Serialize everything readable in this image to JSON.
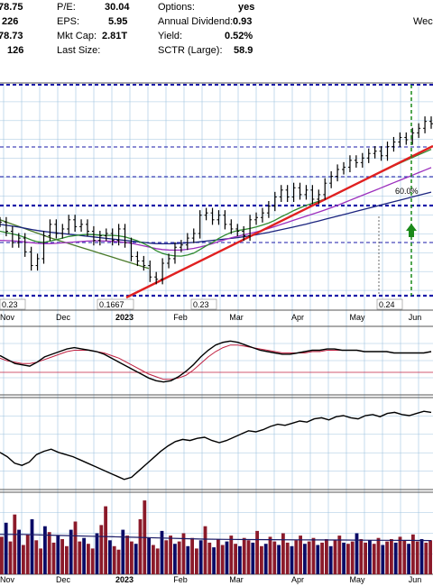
{
  "header": {
    "stats": [
      {
        "label": "",
        "value": "78.75"
      },
      {
        "label": "",
        "value": "226"
      },
      {
        "label": "",
        "value": "78.73"
      },
      {
        "label": "",
        "value": "126"
      }
    ],
    "fundamentals": [
      {
        "label": "P/E:",
        "value": "30.04"
      },
      {
        "label": "EPS:",
        "value": "5.95"
      },
      {
        "label": "Mkt Cap:",
        "value": "2.81T"
      },
      {
        "label": "Last Size:",
        "value": ""
      }
    ],
    "other": [
      {
        "label": "Options:",
        "value": "yes"
      },
      {
        "label": "Annual Dividend:",
        "value": "0.93"
      },
      {
        "label": "Yield:",
        "value": "0.52%"
      },
      {
        "label": "SCTR (Large):",
        "value": "58.9"
      }
    ],
    "date_fragment": "Wec"
  },
  "colors": {
    "background": "#ffffff",
    "grid": "#9fc3df",
    "price_bar": "#000000",
    "sma_short": "#2f8a2f",
    "sma_mid": "#9b2fbd",
    "sma_long": "#1a237e",
    "sma_200": "#4a7a2a",
    "trendline": "#e02020",
    "level_line": "#1a1aa8",
    "projection": "#1a8a1a",
    "rsi_line": "#000000",
    "rsi_signal": "#c02040",
    "volume_up": "#0a0a66",
    "volume_down": "#8b1a2a",
    "panel_border": "#555555"
  },
  "chart_data": {
    "type": "line",
    "title": "",
    "x_axis": {
      "month_labels": [
        "Nov",
        "Dec",
        "2023",
        "Feb",
        "Mar",
        "Apr",
        "May",
        "Jun"
      ],
      "bold_label": "2023"
    },
    "price_panel": {
      "close": [
        151,
        147,
        142,
        144,
        138,
        132,
        135,
        145,
        150,
        146,
        148,
        152,
        149,
        150,
        147,
        143,
        145,
        146,
        143,
        148,
        142,
        136,
        134,
        132,
        127,
        126,
        133,
        135,
        140,
        141,
        144,
        146,
        154,
        155,
        152,
        154,
        150,
        148,
        147,
        145,
        152,
        153,
        155,
        158,
        162,
        165,
        162,
        166,
        163,
        165,
        161,
        163,
        168,
        171,
        174,
        175,
        178,
        177,
        179,
        181,
        182,
        180,
        184,
        186,
        188,
        187,
        190,
        192,
        195,
        194
      ],
      "sma_short": [
        147,
        146.4,
        145.8,
        145.2,
        144.3,
        143.2,
        142.4,
        142.1,
        142.7,
        143.3,
        144,
        144.7,
        145.1,
        145.4,
        145.6,
        145.5,
        145.3,
        145.2,
        145.2,
        145,
        144.5,
        143.7,
        142.8,
        141.6,
        140.2,
        138.5,
        137.3,
        136.6,
        136.2,
        136.1,
        136.6,
        137.4,
        139,
        140.6,
        142.1,
        143.9,
        145.3,
        146.5,
        147.3,
        147.7,
        148.2,
        148.9,
        149.7,
        150.6,
        151.8,
        153.3,
        154.6,
        156,
        157.2,
        158.3,
        159.2,
        160.1,
        161.1,
        162.2,
        163.4,
        164.8,
        166.2,
        167.6,
        169,
        170.5,
        171.8,
        172.9,
        174.2,
        175.5,
        176.8,
        178,
        179.2,
        180.4,
        181.6,
        182.8
      ],
      "sma_mid": [
        143,
        142.9,
        142.8,
        142.6,
        142.3,
        142,
        141.7,
        141.6,
        141.6,
        141.7,
        141.9,
        142.1,
        142.3,
        142.5,
        142.7,
        142.8,
        142.8,
        142.7,
        142.6,
        142.4,
        142.1,
        141.7,
        141.2,
        140.6,
        140,
        139.4,
        139,
        138.8,
        138.7,
        138.8,
        139.1,
        139.5,
        140.1,
        140.8,
        141.6,
        142.5,
        143.3,
        144.1,
        144.8,
        145.4,
        146,
        146.7,
        147.4,
        148.2,
        149.1,
        150,
        150.9,
        151.8,
        152.7,
        153.6,
        154.5,
        155.4,
        156.3,
        157.3,
        158.3,
        159.4,
        160.5,
        161.6,
        162.7,
        163.8,
        164.9,
        166,
        167.1,
        168.2,
        169.3,
        170.4,
        171.5,
        172.6,
        173.7,
        174.8
      ],
      "sma_long": [
        150,
        149.6,
        149.2,
        148.8,
        148.3,
        147.8,
        147.3,
        146.9,
        146.6,
        146.3,
        146,
        145.7,
        145.4,
        145.1,
        144.8,
        144.5,
        144.2,
        143.9,
        143.6,
        143.3,
        143,
        142.7,
        142.4,
        142.1,
        141.8,
        141.6,
        141.5,
        141.5,
        141.6,
        141.7,
        141.9,
        142.1,
        142.4,
        142.7,
        143,
        143.3,
        143.6,
        143.9,
        144.2,
        144.6,
        145,
        145.5,
        146,
        146.5,
        147.1,
        147.7,
        148.3,
        148.9,
        149.5,
        150.1,
        150.8,
        151.5,
        152.2,
        152.9,
        153.6,
        154.3,
        155,
        155.7,
        156.4,
        157.1,
        157.8,
        158.5,
        159.2,
        159.9,
        160.6,
        161.3,
        162,
        162.7,
        163.4,
        164.1
      ],
      "sma_200": [
        152,
        151.2,
        150.4,
        149.6,
        148.8,
        148,
        147.2,
        146.4,
        145.6,
        144.8,
        144,
        143.3,
        142.6,
        141.9,
        141.2,
        140.5,
        139.8,
        139.1,
        138.4,
        137.7,
        137,
        136.3,
        135.6,
        134.9,
        134.2,
        133.5,
        132.8,
        132.1,
        131.4,
        130.7
      ],
      "level_labels": [
        "0.23",
        "0.1667",
        "0.23",
        "0.24"
      ],
      "annotation": "60.0%"
    },
    "indicator1": {
      "line": [
        57,
        54,
        51,
        50,
        49,
        52,
        56,
        58,
        60,
        62,
        63,
        62,
        61,
        60,
        58,
        55,
        52,
        49,
        46,
        43,
        40,
        38,
        37,
        38,
        41,
        45,
        50,
        56,
        61,
        65,
        67,
        68,
        67,
        65,
        63,
        61,
        60,
        59,
        58,
        58,
        59,
        60,
        61,
        61,
        62,
        62,
        61,
        61,
        61,
        60,
        60,
        60,
        60,
        59,
        59,
        59,
        59,
        59,
        60
      ],
      "signal": [
        55,
        53,
        52,
        51,
        51,
        52,
        54,
        56,
        58,
        60,
        61,
        61,
        61,
        60,
        59,
        57,
        55,
        52,
        49,
        46,
        43,
        41,
        39,
        39,
        40,
        42,
        46,
        51,
        56,
        60,
        63,
        65,
        65,
        64,
        63,
        62,
        61,
        60,
        59,
        59,
        59,
        59,
        60,
        60,
        61,
        61,
        61,
        61,
        61,
        60,
        60,
        60,
        60,
        59,
        59,
        59,
        59,
        59,
        60
      ]
    },
    "indicator2": {
      "line": [
        46,
        42,
        36,
        34,
        37,
        44,
        47,
        49,
        46,
        44,
        42,
        39,
        36,
        33,
        30,
        27,
        24,
        21,
        23,
        29,
        35,
        41,
        47,
        52,
        56,
        58,
        57,
        59,
        60,
        57,
        55,
        57,
        60,
        63,
        66,
        65,
        67,
        70,
        72,
        71,
        73,
        75,
        74,
        77,
        78,
        76,
        79,
        80,
        78,
        77,
        80,
        81,
        79,
        82,
        83,
        81,
        80,
        82,
        84,
        83
      ]
    },
    "volume": {
      "values": [
        32,
        44,
        28,
        51,
        38,
        25,
        34,
        47,
        29,
        22,
        41,
        36,
        27,
        33,
        30,
        24,
        38,
        45,
        28,
        31,
        26,
        22,
        35,
        42,
        58,
        29,
        24,
        21,
        38,
        33,
        28,
        26,
        47,
        63,
        31,
        25,
        22,
        37,
        29,
        33,
        26,
        28,
        35,
        24,
        31,
        22,
        29,
        41,
        27,
        23,
        30,
        25,
        28,
        33,
        26,
        24,
        31,
        29,
        27,
        37,
        24,
        26,
        32,
        28,
        25,
        35,
        27,
        24,
        29,
        33,
        26,
        28,
        31,
        25,
        27,
        30,
        24,
        29,
        33,
        27,
        26,
        28,
        35,
        30,
        27,
        29,
        26,
        31,
        25,
        28,
        30,
        27,
        32,
        29,
        26,
        34,
        28,
        30,
        27,
        29
      ],
      "ma": [
        34,
        34,
        33.5,
        33,
        32.5,
        32,
        31.5,
        31,
        30.5,
        30,
        29.8,
        29.6,
        29.5,
        29.4,
        29.3,
        29.2,
        29.1,
        29,
        28.9,
        28.8
      ]
    }
  }
}
